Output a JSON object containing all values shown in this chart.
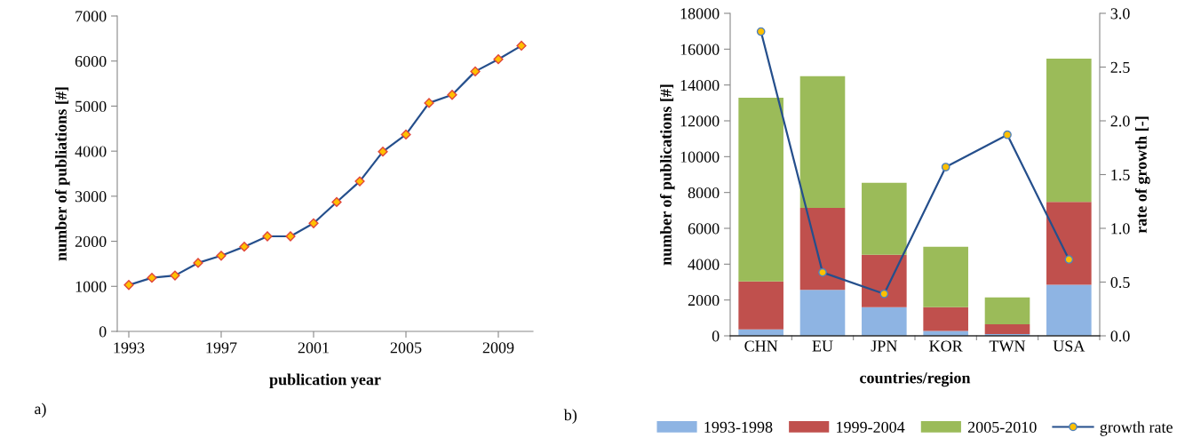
{
  "chart_data": [
    {
      "type": "line",
      "xlabel": "publication year",
      "ylabel": "number of publiations [#]",
      "annotations": [
        "a)"
      ],
      "x": [
        1993,
        1994,
        1995,
        1996,
        1997,
        1998,
        1999,
        2000,
        2001,
        2002,
        2003,
        2004,
        2005,
        2006,
        2007,
        2008,
        2009,
        2010
      ],
      "series": [
        {
          "color": "#254f8c",
          "values": [
            1030,
            1190,
            1240,
            1520,
            1680,
            1880,
            2110,
            2110,
            2400,
            2870,
            3330,
            3990,
            4370,
            5070,
            5250,
            5770,
            6040,
            6340
          ]
        }
      ],
      "xlim": [
        1992.5,
        2010.5
      ],
      "xticks": [
        1993,
        1997,
        2001,
        2005,
        2009
      ],
      "ylim": [
        0,
        7000
      ],
      "yticks": [
        0,
        1000,
        2000,
        3000,
        4000,
        5000,
        6000,
        7000
      ],
      "marker": "diamond",
      "grid": false,
      "legend": false
    },
    {
      "type": "bar",
      "stacked": true,
      "xlabel": "countries/region",
      "ylabel": "number of publications [#]",
      "y2label": "rate of growth [-]",
      "annotations": [
        "b)"
      ],
      "categories": [
        "CHN",
        "EU",
        "JPN",
        "KOR",
        "TWN",
        "USA"
      ],
      "series": [
        {
          "name": "1993-1998",
          "color": "#8eb4e3",
          "values": [
            360,
            2560,
            1600,
            270,
            100,
            2850
          ]
        },
        {
          "name": "1999-2004",
          "color": "#c0504d",
          "values": [
            2680,
            4580,
            2920,
            1330,
            550,
            4630
          ]
        },
        {
          "name": "2005-2010",
          "color": "#9bbb59",
          "values": [
            10250,
            7350,
            4020,
            3370,
            1500,
            7990
          ]
        },
        {
          "name": "growth rate",
          "type": "line",
          "axis": "y2",
          "color": "#254f8c",
          "values": [
            2.83,
            0.59,
            0.39,
            1.57,
            1.87,
            0.71
          ]
        }
      ],
      "ylim": [
        0,
        18000
      ],
      "yticks": [
        0,
        2000,
        4000,
        6000,
        8000,
        10000,
        12000,
        14000,
        16000,
        18000
      ],
      "y2lim": [
        0,
        3.0
      ],
      "y2ticks": [
        {
          "value": 0,
          "label": "0.0"
        },
        {
          "value": 0.5,
          "label": "0.5"
        },
        {
          "value": 1.0,
          "label": "1.0"
        },
        {
          "value": 1.5,
          "label": "1.5"
        },
        {
          "value": 2.0,
          "label": "2.0"
        },
        {
          "value": 2.5,
          "label": "2.5"
        },
        {
          "value": 3.0,
          "label": "3.0"
        }
      ],
      "marker": "circle",
      "grid": false,
      "legend": "bottom"
    }
  ]
}
